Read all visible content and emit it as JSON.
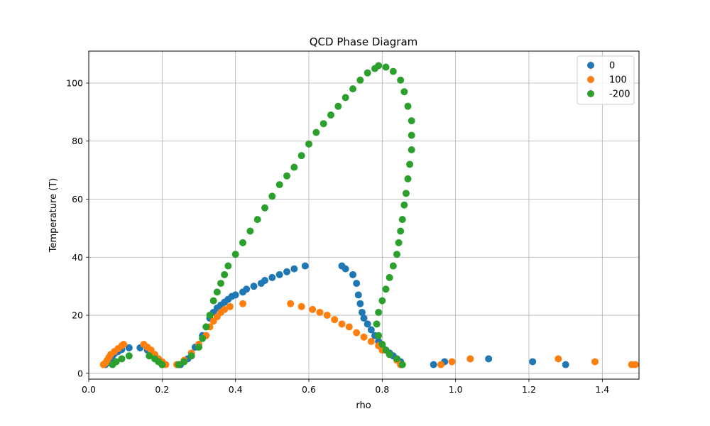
{
  "chart_data": {
    "type": "scatter",
    "title": "QCD Phase Diagram",
    "xlabel": "rho",
    "ylabel": "Temperature (T)",
    "xlim": [
      0.0,
      1.5
    ],
    "ylim": [
      -2,
      111
    ],
    "xticks": [
      "0.0",
      "0.2",
      "0.4",
      "0.6",
      "0.8",
      "1.0",
      "1.2",
      "1.4"
    ],
    "yticks": [
      "0",
      "20",
      "40",
      "60",
      "80",
      "100"
    ],
    "grid": true,
    "legend_position": "top-right",
    "series": [
      {
        "name": "0",
        "color": "#1f77b4",
        "points": [
          [
            0.045,
            3
          ],
          [
            0.05,
            3.5
          ],
          [
            0.055,
            4
          ],
          [
            0.06,
            5
          ],
          [
            0.065,
            6
          ],
          [
            0.07,
            6.8
          ],
          [
            0.08,
            7.5
          ],
          [
            0.09,
            8.2
          ],
          [
            0.11,
            8.8
          ],
          [
            0.14,
            8.8
          ],
          [
            0.16,
            8
          ],
          [
            0.18,
            6
          ],
          [
            0.19,
            5
          ],
          [
            0.2,
            3.5
          ],
          [
            0.2,
            3
          ],
          [
            0.25,
            3
          ],
          [
            0.27,
            5
          ],
          [
            0.29,
            9
          ],
          [
            0.31,
            13
          ],
          [
            0.32,
            16
          ],
          [
            0.33,
            19
          ],
          [
            0.34,
            21
          ],
          [
            0.35,
            22.5
          ],
          [
            0.36,
            23.5
          ],
          [
            0.37,
            24.5
          ],
          [
            0.38,
            25.5
          ],
          [
            0.39,
            26.5
          ],
          [
            0.4,
            27
          ],
          [
            0.42,
            28
          ],
          [
            0.43,
            29
          ],
          [
            0.45,
            30
          ],
          [
            0.47,
            31
          ],
          [
            0.48,
            32
          ],
          [
            0.5,
            33
          ],
          [
            0.52,
            34
          ],
          [
            0.54,
            35
          ],
          [
            0.56,
            36
          ],
          [
            0.59,
            37
          ],
          [
            0.69,
            37
          ],
          [
            0.7,
            36
          ],
          [
            0.72,
            34
          ],
          [
            0.73,
            31
          ],
          [
            0.735,
            27
          ],
          [
            0.74,
            24
          ],
          [
            0.745,
            21
          ],
          [
            0.75,
            19
          ],
          [
            0.76,
            17
          ],
          [
            0.77,
            15
          ],
          [
            0.78,
            13
          ],
          [
            0.79,
            11
          ],
          [
            0.8,
            9.5
          ],
          [
            0.81,
            8
          ],
          [
            0.82,
            7
          ],
          [
            0.83,
            6
          ],
          [
            0.84,
            5
          ],
          [
            0.85,
            4
          ],
          [
            0.85,
            3
          ],
          [
            0.94,
            3
          ],
          [
            0.97,
            4
          ],
          [
            1.04,
            5
          ],
          [
            1.09,
            5
          ],
          [
            1.21,
            4
          ],
          [
            1.3,
            3
          ]
        ]
      },
      {
        "name": "100",
        "color": "#ff7f0e",
        "points": [
          [
            0.04,
            3
          ],
          [
            0.045,
            3.5
          ],
          [
            0.05,
            4.5
          ],
          [
            0.055,
            5.5
          ],
          [
            0.06,
            6.5
          ],
          [
            0.07,
            7.5
          ],
          [
            0.08,
            8.5
          ],
          [
            0.09,
            9.5
          ],
          [
            0.095,
            10
          ],
          [
            0.15,
            10
          ],
          [
            0.16,
            9
          ],
          [
            0.17,
            8
          ],
          [
            0.18,
            6.5
          ],
          [
            0.19,
            5
          ],
          [
            0.2,
            4
          ],
          [
            0.21,
            3
          ],
          [
            0.24,
            3
          ],
          [
            0.26,
            4.5
          ],
          [
            0.28,
            7
          ],
          [
            0.3,
            10
          ],
          [
            0.32,
            13
          ],
          [
            0.33,
            16
          ],
          [
            0.34,
            18
          ],
          [
            0.35,
            19.5
          ],
          [
            0.36,
            21
          ],
          [
            0.37,
            22
          ],
          [
            0.385,
            23
          ],
          [
            0.42,
            24
          ],
          [
            0.55,
            24
          ],
          [
            0.58,
            23
          ],
          [
            0.61,
            22
          ],
          [
            0.63,
            21
          ],
          [
            0.65,
            20
          ],
          [
            0.67,
            18.5
          ],
          [
            0.69,
            17
          ],
          [
            0.71,
            16
          ],
          [
            0.73,
            14
          ],
          [
            0.75,
            12.5
          ],
          [
            0.77,
            11
          ],
          [
            0.79,
            9.5
          ],
          [
            0.8,
            8
          ],
          [
            0.82,
            6.5
          ],
          [
            0.84,
            4.5
          ],
          [
            0.85,
            3
          ],
          [
            0.96,
            3
          ],
          [
            0.99,
            4
          ],
          [
            1.04,
            5
          ],
          [
            1.28,
            5
          ],
          [
            1.38,
            4
          ],
          [
            1.48,
            3
          ],
          [
            1.49,
            3
          ]
        ]
      },
      {
        "name": "-200",
        "color": "#2ca02c",
        "points": [
          [
            0.065,
            3
          ],
          [
            0.075,
            4
          ],
          [
            0.09,
            5
          ],
          [
            0.11,
            6
          ],
          [
            0.165,
            6
          ],
          [
            0.18,
            5
          ],
          [
            0.19,
            4
          ],
          [
            0.2,
            3
          ],
          [
            0.245,
            3
          ],
          [
            0.26,
            4
          ],
          [
            0.28,
            6
          ],
          [
            0.3,
            9
          ],
          [
            0.31,
            12
          ],
          [
            0.32,
            16
          ],
          [
            0.33,
            20
          ],
          [
            0.34,
            25
          ],
          [
            0.35,
            28
          ],
          [
            0.36,
            31
          ],
          [
            0.37,
            34
          ],
          [
            0.38,
            37
          ],
          [
            0.4,
            41
          ],
          [
            0.42,
            45
          ],
          [
            0.44,
            49
          ],
          [
            0.46,
            53
          ],
          [
            0.48,
            57
          ],
          [
            0.5,
            61
          ],
          [
            0.52,
            65
          ],
          [
            0.54,
            68
          ],
          [
            0.56,
            71
          ],
          [
            0.58,
            75
          ],
          [
            0.6,
            79
          ],
          [
            0.62,
            83
          ],
          [
            0.64,
            86
          ],
          [
            0.66,
            89
          ],
          [
            0.68,
            92
          ],
          [
            0.7,
            95
          ],
          [
            0.72,
            98
          ],
          [
            0.74,
            101
          ],
          [
            0.76,
            103.5
          ],
          [
            0.78,
            105
          ],
          [
            0.79,
            106
          ],
          [
            0.81,
            105.5
          ],
          [
            0.83,
            104
          ],
          [
            0.85,
            101
          ],
          [
            0.86,
            97
          ],
          [
            0.87,
            92
          ],
          [
            0.88,
            87
          ],
          [
            0.88,
            82
          ],
          [
            0.88,
            77
          ],
          [
            0.875,
            72
          ],
          [
            0.87,
            67
          ],
          [
            0.865,
            62
          ],
          [
            0.86,
            58
          ],
          [
            0.855,
            53
          ],
          [
            0.85,
            49
          ],
          [
            0.845,
            45
          ],
          [
            0.84,
            41
          ],
          [
            0.83,
            37
          ],
          [
            0.82,
            33
          ],
          [
            0.81,
            29
          ],
          [
            0.8,
            25
          ],
          [
            0.79,
            21
          ],
          [
            0.785,
            17
          ],
          [
            0.79,
            13
          ],
          [
            0.8,
            10
          ],
          [
            0.81,
            8
          ],
          [
            0.82,
            6.5
          ],
          [
            0.84,
            5
          ],
          [
            0.855,
            3
          ]
        ]
      }
    ]
  }
}
